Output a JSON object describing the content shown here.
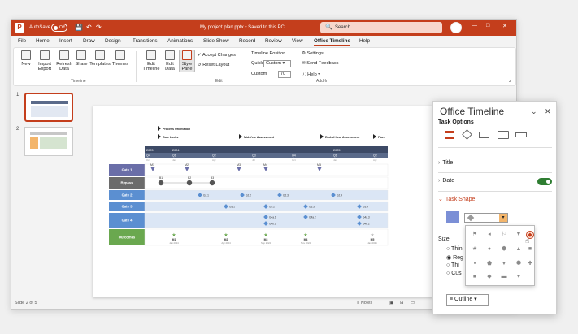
{
  "titlebar": {
    "logo": "P",
    "autosave_label": "AutoSave",
    "autosave_state": "Off",
    "doc_title": "My project plan.pptx • Saved to this PC",
    "search_placeholder": "Search"
  },
  "menu": [
    "File",
    "Home",
    "Insert",
    "Draw",
    "Design",
    "Transitions",
    "Animations",
    "Slide Show",
    "Record",
    "Review",
    "View",
    "Office Timeline",
    "Help"
  ],
  "ribbon": {
    "new": "New",
    "import": "Import",
    "import2": "Export",
    "refresh": "Refresh",
    "refresh2": "Data",
    "share": "Share",
    "templates": "Templates",
    "themes": "Themes",
    "group_timeline": "Timeline",
    "edit_timeline": "Edit",
    "edit_timeline2": "Timeline",
    "edit_data": "Edit",
    "edit_data2": "Data",
    "style_pane": "Style",
    "style_pane2": "Pane",
    "accept_changes": "Accept Changes",
    "reset_layout": "Reset Layout",
    "group_edit": "Edit",
    "timeline_position": "Timeline Position",
    "quick": "Quick",
    "quick_value": "Custom",
    "custom": "Custom",
    "custom_value": "70",
    "settings": "Settings",
    "send_feedback": "Send Feedback",
    "help": "Help",
    "group_addin": "Add-In"
  },
  "thumbs": [
    "1",
    "2"
  ],
  "status": {
    "slide": "Slide 2 of 5",
    "notes": "Notes"
  },
  "timeline": {
    "milestones_top": [
      "Process Orientation",
      "Gate Locks",
      "Mid-Year Assessment",
      "End-of-Year Assessment",
      "Plan"
    ],
    "years": [
      "2023",
      "2024",
      "2025"
    ],
    "quarters": [
      "Q4",
      "Q1",
      "Q2",
      "Q3",
      "Q4",
      "Q1",
      "Q2"
    ],
    "months": [
      "Oct",
      "Jan",
      "Apr",
      "Jul",
      "Oct",
      "Jan",
      "Apr"
    ],
    "rows": [
      "Gate 1",
      "Bypass",
      "Gate 2",
      "Gate 3",
      "Gate 4",
      "Outcomes"
    ],
    "row_colors": [
      "#6a6ea8",
      "#6b6b6b",
      "#5b8fd1",
      "#5b8fd1",
      "#5b8fd1",
      "#6aa84f"
    ],
    "gate1": [
      "M1",
      "M2",
      "M3",
      "M4",
      "M5"
    ],
    "bypass": [
      "B1",
      "B2",
      "B3"
    ],
    "gate2": [
      "G2.1",
      "G2.2",
      "G2.3",
      "G2.4"
    ],
    "gate3": [
      "G3.1",
      "G3.2",
      "G3.3",
      "G3.4"
    ],
    "gate4a": [
      "G4a.1",
      "G4a.2",
      "G4a.3"
    ],
    "gate4b": [
      "G4b.1",
      "G4b.2"
    ],
    "outcomes": [
      "M1",
      "M2",
      "M3",
      "M4",
      "M5"
    ],
    "outcome_dates": [
      "Jan 2024",
      "Apr 2024",
      "Sep 2024",
      "Nov 2024",
      "Jan 2025"
    ]
  },
  "pane": {
    "title": "Office Timeline",
    "task_options": "Task Options",
    "title_section": "Title",
    "date_section": "Date",
    "task_shape": "Task Shape",
    "size": "Size",
    "size_opts": [
      "Thin",
      "Reg",
      "Thi",
      "Cus"
    ],
    "outline": "Outline"
  },
  "colors": {
    "accent": "#c43e1c",
    "green": "#2e7d32",
    "shape_fill": "#7b8fd6"
  }
}
